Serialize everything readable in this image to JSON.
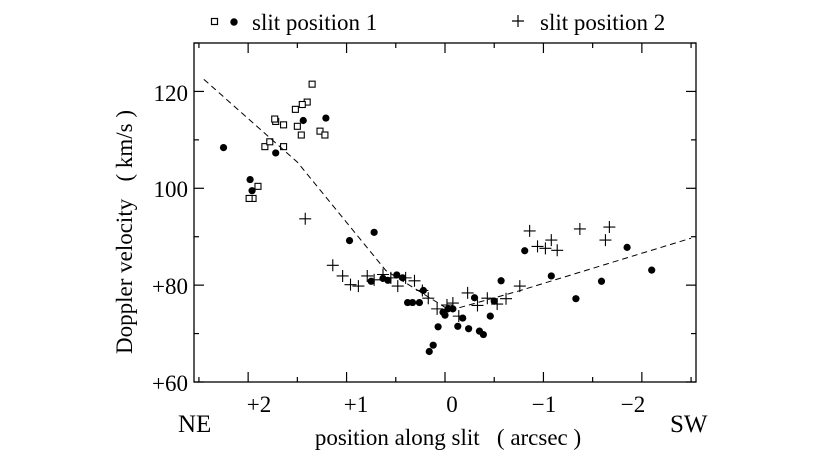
{
  "chart_data": {
    "type": "scatter",
    "title": "",
    "xlabel": "position along slit   ( arcsec )",
    "ylabel": "Doppler velocity   ( km/s )",
    "xlim": [
      2.55,
      -2.55
    ],
    "ylim": [
      60,
      130
    ],
    "x_ticks": [
      2,
      1,
      0,
      -1,
      -2
    ],
    "x_tick_labels": [
      "+2",
      "+1",
      "0",
      "−1",
      "−2"
    ],
    "y_ticks": [
      60,
      80,
      100,
      120
    ],
    "y_tick_labels": [
      "+60",
      "+80",
      "100",
      "120"
    ],
    "x_end_labels": {
      "left": "NE",
      "right": "SW"
    },
    "legend": [
      {
        "label": "slit position 1",
        "markers": [
          "open-square",
          "filled-circle"
        ]
      },
      {
        "label": "slit position 2",
        "markers": [
          "plus"
        ]
      }
    ],
    "series": [
      {
        "name": "slit position 1 (squares)",
        "marker": "open-square",
        "points": [
          [
            1.35,
            121.5
          ],
          [
            1.4,
            117.8
          ],
          [
            1.45,
            117.3
          ],
          [
            1.52,
            116.3
          ],
          [
            1.5,
            112.8
          ],
          [
            1.64,
            113.1
          ],
          [
            1.72,
            113.8
          ],
          [
            1.73,
            114.3
          ],
          [
            1.46,
            111.0
          ],
          [
            1.27,
            111.8
          ],
          [
            1.22,
            111.0
          ],
          [
            1.83,
            108.6
          ],
          [
            1.64,
            108.6
          ],
          [
            1.78,
            109.6
          ],
          [
            1.95,
            97.9
          ],
          [
            1.99,
            97.9
          ],
          [
            1.9,
            100.4
          ]
        ]
      },
      {
        "name": "slit position 1 (circles)",
        "marker": "filled-circle",
        "points": [
          [
            2.25,
            108.4
          ],
          [
            1.98,
            101.8
          ],
          [
            1.96,
            99.5
          ],
          [
            1.72,
            107.3
          ],
          [
            1.44,
            114.0
          ],
          [
            1.21,
            114.5
          ],
          [
            0.97,
            89.2
          ],
          [
            0.72,
            90.9
          ],
          [
            0.75,
            80.8
          ],
          [
            0.63,
            81.4
          ],
          [
            0.58,
            81.0
          ],
          [
            0.49,
            82.1
          ],
          [
            0.43,
            81.5
          ],
          [
            0.38,
            76.4
          ],
          [
            0.33,
            76.4
          ],
          [
            0.26,
            76.4
          ],
          [
            0.22,
            78.9
          ],
          [
            0.16,
            66.3
          ],
          [
            0.12,
            67.6
          ],
          [
            0.07,
            71.4
          ],
          [
            0.02,
            74.4
          ],
          [
            0.0,
            73.8
          ],
          [
            -0.03,
            75.1
          ],
          [
            -0.08,
            75.1
          ],
          [
            -0.13,
            71.5
          ],
          [
            -0.18,
            73.2
          ],
          [
            -0.24,
            71.0
          ],
          [
            -0.3,
            77.4
          ],
          [
            -0.35,
            70.5
          ],
          [
            -0.39,
            69.8
          ],
          [
            -0.46,
            73.6
          ],
          [
            -0.5,
            76.7
          ],
          [
            -0.57,
            80.9
          ],
          [
            -0.81,
            87.1
          ],
          [
            -1.08,
            81.9
          ],
          [
            -1.33,
            77.2
          ],
          [
            -1.59,
            80.8
          ],
          [
            -1.85,
            87.8
          ],
          [
            -2.1,
            83.1
          ]
        ]
      },
      {
        "name": "slit position 2",
        "marker": "plus",
        "points": [
          [
            1.42,
            93.7
          ],
          [
            1.14,
            84.1
          ],
          [
            1.04,
            81.9
          ],
          [
            0.96,
            80.1
          ],
          [
            0.88,
            79.8
          ],
          [
            0.79,
            81.9
          ],
          [
            0.72,
            81.1
          ],
          [
            0.63,
            82.2
          ],
          [
            0.55,
            81.5
          ],
          [
            0.48,
            79.8
          ],
          [
            0.4,
            81.5
          ],
          [
            0.31,
            80.9
          ],
          [
            0.23,
            78.9
          ],
          [
            0.17,
            77.3
          ],
          [
            0.08,
            75.1
          ],
          [
            -0.02,
            75.9
          ],
          [
            -0.08,
            76.3
          ],
          [
            -0.14,
            73.6
          ],
          [
            -0.23,
            78.4
          ],
          [
            -0.33,
            75.8
          ],
          [
            -0.43,
            77.3
          ],
          [
            -0.53,
            76.1
          ],
          [
            -0.62,
            77.2
          ],
          [
            -0.76,
            79.8
          ],
          [
            -0.86,
            91.2
          ],
          [
            -0.94,
            88.0
          ],
          [
            -1.02,
            87.6
          ],
          [
            -1.08,
            89.3
          ],
          [
            -1.14,
            87.2
          ],
          [
            -1.37,
            91.6
          ],
          [
            -1.63,
            89.3
          ],
          [
            -1.67,
            92.0
          ]
        ]
      },
      {
        "name": "dashed fit",
        "marker": "dashed-line",
        "points": [
          [
            2.45,
            122.5
          ],
          [
            1.5,
            105.4
          ],
          [
            0.6,
            83.0
          ],
          [
            -0.05,
            74.8
          ],
          [
            -0.75,
            78.8
          ],
          [
            -2.5,
            89.7
          ]
        ]
      }
    ]
  }
}
